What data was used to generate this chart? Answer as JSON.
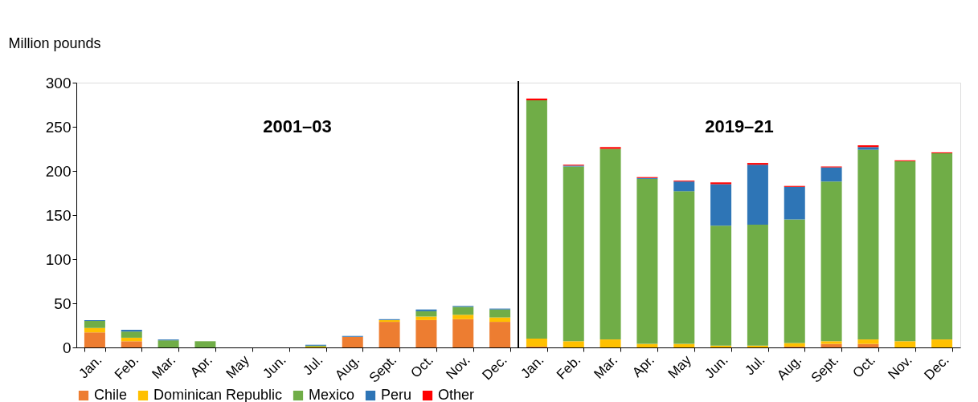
{
  "chart_data": {
    "type": "bar",
    "stacked": true,
    "ylabel": "Million pounds",
    "categories": [
      "Jan.",
      "Feb.",
      "Mar.",
      "Apr.",
      "May",
      "Jun.",
      "Jul.",
      "Aug.",
      "Sept.",
      "Oct.",
      "Nov.",
      "Dec.",
      "Jan.",
      "Feb.",
      "Mar.",
      "Apr.",
      "May",
      "Jun.",
      "Jul.",
      "Aug.",
      "Sept.",
      "Oct.",
      "Nov.",
      "Dec."
    ],
    "series": [
      {
        "name": "Chile",
        "color": "#ed7d31",
        "values": [
          17,
          7,
          0,
          0,
          0,
          0,
          0,
          12,
          29,
          31,
          32,
          29,
          1,
          0,
          0,
          0,
          0,
          0,
          0,
          1,
          4,
          4,
          0,
          0
        ]
      },
      {
        "name": "Dominican Republic",
        "color": "#ffc000",
        "values": [
          5,
          4,
          0,
          0,
          0,
          0,
          1,
          0,
          2,
          4,
          5,
          5,
          9,
          7,
          9,
          4,
          4,
          2,
          2,
          4,
          3,
          5,
          7,
          9
        ]
      },
      {
        "name": "Mexico",
        "color": "#70ad47",
        "values": [
          8,
          7,
          8,
          7,
          0,
          0,
          1,
          0,
          0,
          6,
          9,
          9,
          270,
          198,
          216,
          187,
          173,
          136,
          137,
          140,
          181,
          215,
          204,
          211
        ]
      },
      {
        "name": "Peru",
        "color": "#2e75b6",
        "values": [
          1,
          2,
          1,
          0,
          0,
          0,
          1,
          1,
          1,
          2,
          1,
          1,
          0,
          1,
          0,
          1,
          11,
          47,
          68,
          37,
          16,
          3,
          0,
          0
        ]
      },
      {
        "name": "Other",
        "color": "#ff0000",
        "values": [
          0,
          0,
          0,
          0,
          0,
          0,
          0,
          0,
          0,
          0,
          0,
          0,
          2,
          1,
          2,
          1,
          1,
          2,
          2,
          1,
          1,
          2,
          1,
          1
        ]
      }
    ],
    "ylim": [
      0,
      300
    ],
    "yticks": [
      0,
      50,
      100,
      150,
      200,
      250,
      300
    ],
    "annotations": [
      "2001–03",
      "2019–21"
    ],
    "grid": false,
    "legend": "bottom"
  }
}
